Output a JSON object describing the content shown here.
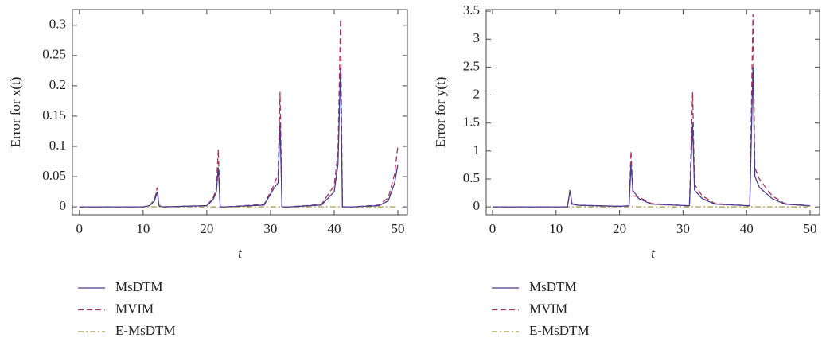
{
  "chart_data": [
    {
      "type": "line",
      "x_label": "t",
      "y_label": "Error for x(t)",
      "xlim": [
        -1.1,
        51.5
      ],
      "ylim": [
        -0.013,
        0.326
      ],
      "xticks": [
        0,
        10,
        20,
        30,
        40,
        50
      ],
      "yticks": [
        0,
        0.05,
        0.1,
        0.15,
        0.2,
        0.25,
        0.3
      ],
      "legend": "below",
      "x": [
        0,
        10,
        11,
        11.8,
        12.2,
        12.5,
        13,
        20,
        21,
        21.5,
        21.8,
        22.1,
        23,
        29,
        30.5,
        31.2,
        31.5,
        31.8,
        33,
        38,
        40,
        40.6,
        41,
        41.3,
        43,
        47,
        48.5,
        49.5,
        50
      ],
      "series": [
        {
          "name": "MsDTM",
          "color": "#4a3c8c",
          "dash": "solid",
          "values": [
            0,
            0,
            0.002,
            0.01,
            0.025,
            0.002,
            0,
            0.002,
            0.012,
            0.025,
            0.065,
            0,
            0,
            0.003,
            0.03,
            0.04,
            0.14,
            0,
            0,
            0.003,
            0.025,
            0.07,
            0.23,
            0,
            0,
            0.002,
            0.01,
            0.04,
            0.07
          ]
        },
        {
          "name": "MVIM",
          "color": "#a8325e",
          "dash": "dashed",
          "values": [
            0,
            0,
            0.002,
            0.012,
            0.032,
            0.002,
            0,
            0.002,
            0.015,
            0.03,
            0.095,
            0,
            0,
            0.004,
            0.035,
            0.055,
            0.19,
            0,
            0,
            0.004,
            0.035,
            0.09,
            0.31,
            0,
            0,
            0.003,
            0.015,
            0.055,
            0.1
          ]
        },
        {
          "name": "E-MsDTM",
          "color": "#a89a4a",
          "dash": "dashdot",
          "values": [
            0,
            0,
            0,
            0,
            0,
            0,
            0,
            0,
            0,
            0,
            0,
            0,
            0,
            0,
            0,
            0,
            0,
            0,
            0,
            0,
            0,
            0,
            0,
            0,
            0,
            0,
            0,
            0,
            0
          ]
        }
      ]
    },
    {
      "type": "line",
      "x_label": "t",
      "y_label": "Error for y(t)",
      "xlim": [
        -1.0,
        51.5
      ],
      "ylim": [
        -0.14,
        3.53
      ],
      "xticks": [
        0,
        10,
        20,
        30,
        40,
        50
      ],
      "yticks": [
        0,
        0.5,
        1,
        1.5,
        2,
        2.5,
        3,
        3.5
      ],
      "legend": "below",
      "x": [
        0,
        11.8,
        12.2,
        12.5,
        13.5,
        20,
        21.5,
        21.8,
        22.1,
        23,
        25,
        31,
        31.5,
        31.8,
        33,
        35,
        40.5,
        41,
        41.3,
        42,
        44,
        46,
        50
      ],
      "series": [
        {
          "name": "MsDTM",
          "color": "#4a3c8c",
          "dash": "solid",
          "values": [
            0,
            0,
            0.3,
            0.05,
            0.03,
            0.01,
            0.02,
            0.75,
            0.3,
            0.15,
            0.05,
            0.02,
            1.5,
            0.3,
            0.15,
            0.05,
            0.02,
            2.5,
            0.55,
            0.35,
            0.15,
            0.05,
            0.02
          ]
        },
        {
          "name": "MVIM",
          "color": "#a8325e",
          "dash": "dashed",
          "values": [
            0,
            0,
            0.3,
            0.06,
            0.03,
            0.01,
            0.02,
            1.0,
            0.2,
            0.18,
            0.06,
            0.02,
            2.05,
            0.4,
            0.2,
            0.06,
            0.02,
            3.45,
            0.7,
            0.5,
            0.2,
            0.06,
            0.02
          ]
        },
        {
          "name": "E-MsDTM",
          "color": "#a89a4a",
          "dash": "dashdot",
          "values": [
            0,
            0,
            0,
            0,
            0,
            0,
            0,
            0,
            0,
            0,
            0,
            0,
            0,
            0,
            0,
            0,
            0,
            0,
            0,
            0,
            0,
            0,
            0
          ]
        }
      ]
    }
  ]
}
